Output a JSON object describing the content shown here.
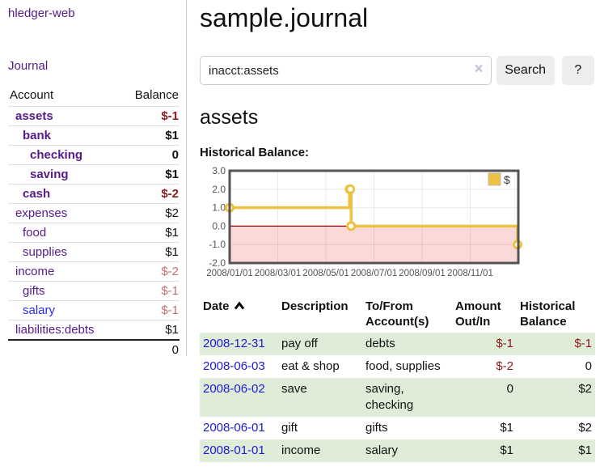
{
  "colors": {
    "link_purple": "#551a8b",
    "link_blue": "#2a2aee",
    "date_link_blue": "#1b1bd6",
    "negative_strong": "#8b1a1a",
    "negative_soft": "#c46f6f",
    "row_stripe_green": "#dfecd8",
    "chart_line_gold": "#edc240",
    "chart_negative_region": "#fbd9d9",
    "chart_zero_line": "#8b0000"
  },
  "sidebar": {
    "app_title": "hledger-web",
    "journal_label": "Journal",
    "accounts_table": {
      "headers": {
        "account": "Account",
        "balance": "Balance"
      },
      "rows": [
        {
          "name": "assets",
          "level": 1,
          "balance": "$-1"
        },
        {
          "name": "bank",
          "level": 2,
          "balance": "$1"
        },
        {
          "name": "checking",
          "level": 3,
          "balance": "0"
        },
        {
          "name": "saving",
          "level": 3,
          "balance": "$1"
        },
        {
          "name": "cash",
          "level": 2,
          "balance": "$-2"
        },
        {
          "name": "expenses",
          "level": 1,
          "balance": "$2"
        },
        {
          "name": "food",
          "level": 2,
          "balance": "$1"
        },
        {
          "name": "supplies",
          "level": 2,
          "balance": "$1"
        },
        {
          "name": "income",
          "level": 1,
          "balance": "$-2"
        },
        {
          "name": "gifts",
          "level": 2,
          "balance": "$-1"
        },
        {
          "name": "salary",
          "level": 2,
          "balance": "$-1"
        },
        {
          "name": "liabilities:debts",
          "level": 1,
          "balance": "$1"
        }
      ],
      "total": "0"
    }
  },
  "main": {
    "title": "sample.journal",
    "search": {
      "value": "inacct:assets",
      "clear_icon": "×",
      "button_label": "Search",
      "help_label": "?"
    },
    "account_heading": "assets",
    "chart_label": "Historical Balance:"
  },
  "chart_data": {
    "type": "line",
    "title": "Historical Balance",
    "step": true,
    "x_range": [
      "2008/01/01",
      "2009/01/01"
    ],
    "ylim": [
      -2,
      3
    ],
    "yticks": [
      "3.0",
      "2.0",
      "1.0",
      "0.0",
      "-1.0",
      "-2.0"
    ],
    "xticks": [
      "2008/01/01",
      "2008/03/01",
      "2008/05/01",
      "2008/07/01",
      "2008/09/01",
      "2008/11/01"
    ],
    "legend": "$",
    "legend_position": "top-right",
    "grid": true,
    "negative_region_color": "#fbd9d9",
    "zero_line_color": "#8b0000",
    "series": [
      {
        "name": "$",
        "color": "#edc240",
        "points": [
          {
            "date": "2008/01/01",
            "value": 1
          },
          {
            "date": "2008/06/01",
            "value": 2
          },
          {
            "date": "2008/06/02",
            "value": 2
          },
          {
            "date": "2008/06/03",
            "value": 0
          },
          {
            "date": "2008/12/31",
            "value": -1
          }
        ]
      }
    ]
  },
  "register": {
    "headers": {
      "date": "Date",
      "description": "Description",
      "accounts": "To/From Account(s)",
      "amount": "Amount Out/In",
      "balance": "Historical Balance"
    },
    "rows": [
      {
        "date": "2008-12-31",
        "description": "pay off",
        "accounts": "debts",
        "amount": "$-1",
        "balance": "$-1"
      },
      {
        "date": "2008-06-03",
        "description": "eat & shop",
        "accounts": "food, supplies",
        "amount": "$-2",
        "balance": "0"
      },
      {
        "date": "2008-06-02",
        "description": "save",
        "accounts": "saving, checking",
        "amount": "0",
        "balance": "$2"
      },
      {
        "date": "2008-06-01",
        "description": "gift",
        "accounts": "gifts",
        "amount": "$1",
        "balance": "$2"
      },
      {
        "date": "2008-01-01",
        "description": "income",
        "accounts": "salary",
        "amount": "$1",
        "balance": "$1"
      }
    ]
  }
}
